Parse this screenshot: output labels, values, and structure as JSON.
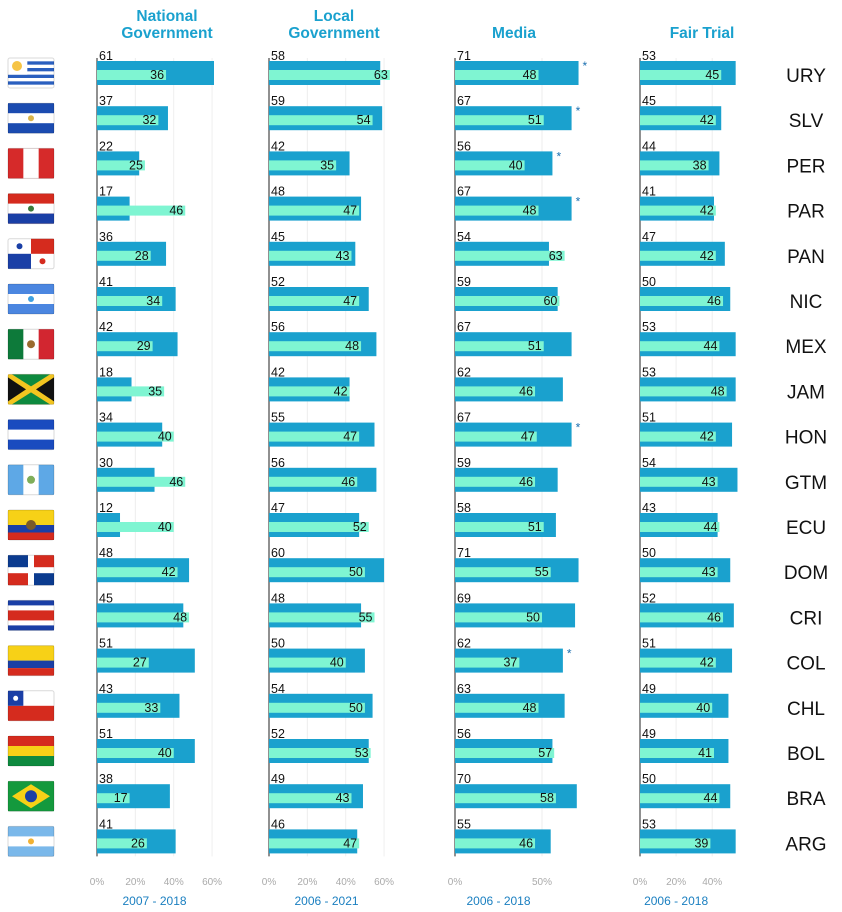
{
  "chart_data": {
    "type": "bar",
    "colors": {
      "first_period_bar": "#1aa1ce",
      "last_period_bar": "#7ff5d2",
      "header": "#1aa1ce",
      "period_label": "#1a7fc0",
      "tick_label": "#aaaaaa"
    },
    "countries": [
      {
        "code": "URY",
        "flag": "uruguay-flag"
      },
      {
        "code": "SLV",
        "flag": "el-salvador-flag"
      },
      {
        "code": "PER",
        "flag": "peru-flag"
      },
      {
        "code": "PAR",
        "flag": "paraguay-flag"
      },
      {
        "code": "PAN",
        "flag": "panama-flag"
      },
      {
        "code": "NIC",
        "flag": "nicaragua-flag"
      },
      {
        "code": "MEX",
        "flag": "mexico-flag"
      },
      {
        "code": "JAM",
        "flag": "jamaica-flag"
      },
      {
        "code": "HON",
        "flag": "honduras-flag"
      },
      {
        "code": "GTM",
        "flag": "guatemala-flag"
      },
      {
        "code": "ECU",
        "flag": "ecuador-flag"
      },
      {
        "code": "DOM",
        "flag": "dominican-republic-flag"
      },
      {
        "code": "CRI",
        "flag": "costa-rica-flag"
      },
      {
        "code": "COL",
        "flag": "colombia-flag"
      },
      {
        "code": "CHL",
        "flag": "chile-flag"
      },
      {
        "code": "BOL",
        "flag": "bolivia-flag"
      },
      {
        "code": "BRA",
        "flag": "brazil-flag"
      },
      {
        "code": "ARG",
        "flag": "argentina-flag"
      }
    ],
    "panels": [
      {
        "title_lines": [
          "National",
          "Government"
        ],
        "period": "2007 - 2018",
        "xlim": [
          0,
          60
        ],
        "ticks": [
          "0%",
          "20%",
          "40%",
          "60%"
        ],
        "first": [
          61,
          37,
          22,
          17,
          36,
          41,
          42,
          18,
          34,
          30,
          12,
          48,
          45,
          51,
          43,
          51,
          38,
          41
        ],
        "last": [
          36,
          32,
          25,
          46,
          28,
          34,
          29,
          35,
          40,
          46,
          40,
          42,
          48,
          27,
          33,
          40,
          17,
          26
        ],
        "asterisk": []
      },
      {
        "title_lines": [
          "Local",
          "Government"
        ],
        "period": "2006 - 2021",
        "xlim": [
          0,
          60
        ],
        "ticks": [
          "0%",
          "20%",
          "40%",
          "60%"
        ],
        "first": [
          58,
          59,
          42,
          48,
          45,
          52,
          56,
          42,
          55,
          56,
          47,
          60,
          48,
          50,
          54,
          52,
          49,
          46
        ],
        "last": [
          63,
          54,
          35,
          47,
          43,
          47,
          48,
          42,
          47,
          46,
          52,
          50,
          55,
          40,
          50,
          53,
          43,
          47
        ],
        "asterisk": []
      },
      {
        "title_lines": [
          "Media"
        ],
        "period": "2006 - 2018",
        "xlim": [
          0,
          50
        ],
        "ticks": [
          "0%",
          "50%"
        ],
        "first": [
          71,
          67,
          56,
          67,
          54,
          59,
          67,
          62,
          67,
          59,
          58,
          71,
          69,
          62,
          63,
          56,
          70,
          55
        ],
        "last": [
          48,
          51,
          40,
          48,
          63,
          60,
          51,
          46,
          47,
          46,
          51,
          55,
          50,
          37,
          48,
          57,
          58,
          46
        ],
        "asterisk": [
          "URY",
          "SLV",
          "PER",
          "PAR",
          "HON",
          "COL"
        ]
      },
      {
        "title_lines": [
          "Fair Trial"
        ],
        "period": "2006 - 2018",
        "xlim": [
          0,
          40
        ],
        "ticks": [
          "0%",
          "20%",
          "40%"
        ],
        "first": [
          53,
          45,
          44,
          41,
          47,
          50,
          53,
          53,
          51,
          54,
          43,
          50,
          52,
          51,
          49,
          49,
          50,
          53
        ],
        "last": [
          45,
          42,
          38,
          42,
          42,
          46,
          44,
          48,
          42,
          43,
          44,
          43,
          46,
          42,
          40,
          41,
          44,
          39
        ],
        "asterisk": []
      }
    ]
  }
}
